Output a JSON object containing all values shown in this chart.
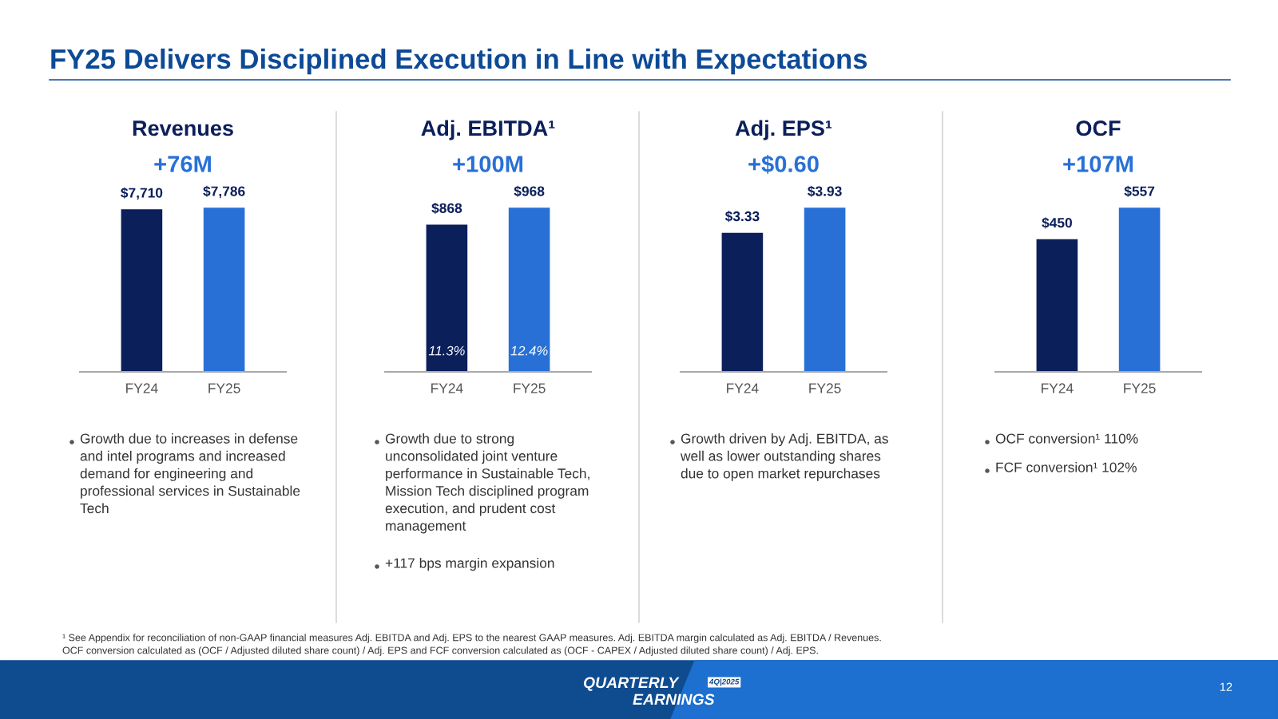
{
  "chart_data": [
    {
      "type": "bar",
      "title": "Revenues",
      "subtitle": "+76M",
      "categories": [
        "FY24",
        "FY25"
      ],
      "values": [
        7710,
        7786
      ],
      "colors": [
        "#0b1f5b",
        "#2870d6"
      ],
      "value_labels": [
        "$7,710",
        "$7,786"
      ],
      "grid": false,
      "legend": false,
      "annotations": [
        "Growth due to increases in defense and intel programs and increased demand for engineering and professional services in Sustainable Tech"
      ]
    },
    {
      "type": "bar",
      "title": "Adj. EBITDA¹",
      "subtitle": "+100M",
      "categories": [
        "FY24",
        "FY25"
      ],
      "values": [
        868,
        968
      ],
      "colors": [
        "#0b1f5b",
        "#2870d6"
      ],
      "value_labels": [
        "$868",
        "$968"
      ],
      "grid": false,
      "legend": false,
      "annotations": [
        "11.3%",
        "12.4%",
        "Growth due to strong unconsolidated joint venture performance in Sustainable Tech, Mission Tech disciplined program execution, and prudent cost management",
        "+117 bps margin expansion"
      ]
    },
    {
      "type": "bar",
      "title": "Adj. EPS¹",
      "subtitle": "+$0.60",
      "categories": [
        "FY24",
        "FY25"
      ],
      "values": [
        3.33,
        3.93
      ],
      "colors": [
        "#0b1f5b",
        "#2870d6"
      ],
      "value_labels": [
        "$3.33",
        "$3.93"
      ],
      "grid": false,
      "legend": false,
      "annotations": [
        "Growth driven by Adj. EBITDA, as well as lower outstanding shares due to open market repurchases"
      ]
    },
    {
      "type": "bar",
      "title": "OCF",
      "subtitle": "+107M",
      "categories": [
        "FY24",
        "FY25"
      ],
      "values": [
        450,
        557
      ],
      "colors": [
        "#0b1f5b",
        "#2870d6"
      ],
      "value_labels": [
        "$450",
        "$557"
      ],
      "grid": false,
      "legend": false,
      "annotations": [
        "OCF conversion¹ 110%",
        "FCF conversion¹ 102%"
      ]
    },
    {
      "type": "other",
      "title": "FY25 Delivers Disciplined Execution in Line with Expectations",
      "annotations": [
        "¹ See Appendix for reconciliation of non-GAAP financial measures Adj. EBITDA and Adj. EPS to the nearest GAAP measures. Adj. EBITDA margin calculated as Adj. EBITDA / Revenues.",
        "OCF conversion calculated as (OCF / Adjusted diluted share count) / Adj. EPS and FCF conversion calculated as (OCF - CAPEX / Adjusted diluted share count) / Adj. EPS.",
        "QUARTERLY",
        "4Q|2025",
        "EARNINGS",
        "12"
      ]
    }
  ]
}
